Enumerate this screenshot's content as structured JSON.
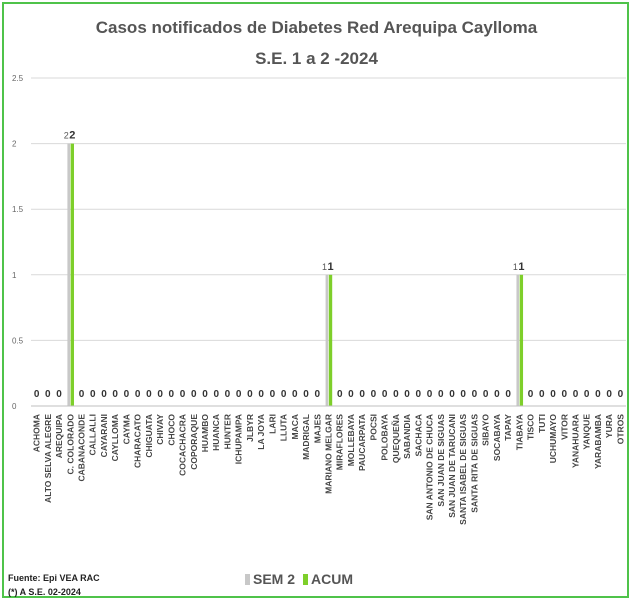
{
  "chart_data": {
    "type": "bar",
    "title": "Casos notificados de Diabetes  Red Arequipa Caylloma",
    "subtitle": "S.E. 1 a 2 -2024",
    "ylim": [
      0,
      2.5
    ],
    "yticks": [
      "0",
      "0.5",
      "1",
      "1.5",
      "2",
      "2.5"
    ],
    "grid": true,
    "legend_position": "bottom",
    "categories": [
      "ACHOMA",
      "ALTO SELVA ALEGRE",
      "AREQUIPA",
      "C. COLORADO",
      "CABANACONDE",
      "CALLALLI",
      "CAYARANI",
      "CAYLLOMA",
      "CAYMA",
      "CHARACATO",
      "CHIGUATA",
      "CHIVAY",
      "CHOCO",
      "COCACHACRA",
      "COPORAQUE",
      "HUAMBO",
      "HUANCA",
      "HUNTER",
      "ICHUPAMPA",
      "JLBYR",
      "LA JOYA",
      "LARI",
      "LLUTA",
      "MACA",
      "MADRIGAL",
      "MAJES",
      "MARIANO MELGAR",
      "MIRAFLORES",
      "MOLLEBAYA",
      "PAUCARPATA",
      "POCSI",
      "POLOBAYA",
      "QUEQUEÑA",
      "SABANDIA",
      "SACHACA",
      "SAN ANTONIO DE CHUCA",
      "SAN JUAN DE SIGUAS",
      "SAN JUAN DE TARUCANI",
      "SANTA ISABEL DE SIGUAS",
      "SANTA RITA DE SIGUAS",
      "SIBAYO",
      "SOCABAYA",
      "TAPAY",
      "TIABAYA",
      "TISCO",
      "TUTI",
      "UCHUMAYO",
      "VITOR",
      "YANAHUARA",
      "YANQUE",
      "YARABAMBA",
      "YURA",
      "OTROS"
    ],
    "series": [
      {
        "name": "SEM 2",
        "color": "#c8c8c8",
        "values": [
          0,
          0,
          0,
          2,
          0,
          0,
          0,
          0,
          0,
          0,
          0,
          0,
          0,
          0,
          0,
          0,
          0,
          0,
          0,
          0,
          0,
          0,
          0,
          0,
          0,
          0,
          1,
          0,
          0,
          0,
          0,
          0,
          0,
          0,
          0,
          0,
          0,
          0,
          0,
          0,
          0,
          0,
          0,
          1,
          0,
          0,
          0,
          0,
          0,
          0,
          0,
          0,
          0
        ]
      },
      {
        "name": "ACUM",
        "color": "#7ecf2a",
        "values": [
          0,
          0,
          0,
          2,
          0,
          0,
          0,
          0,
          0,
          0,
          0,
          0,
          0,
          0,
          0,
          0,
          0,
          0,
          0,
          0,
          0,
          0,
          0,
          0,
          0,
          0,
          1,
          0,
          0,
          0,
          0,
          0,
          0,
          0,
          0,
          0,
          0,
          0,
          0,
          0,
          0,
          0,
          0,
          1,
          0,
          0,
          0,
          0,
          0,
          0,
          0,
          0,
          0
        ]
      }
    ]
  },
  "notes": {
    "source": "Fuente: Epi VEA RAC",
    "period": "(*) A S.E. 02-2024"
  }
}
